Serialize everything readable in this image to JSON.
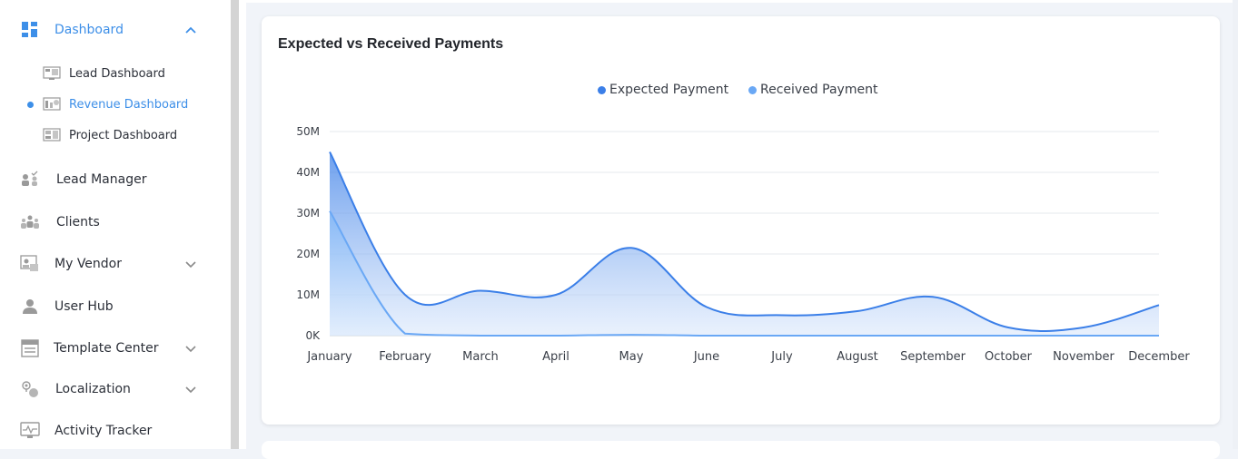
{
  "sidebar": {
    "items": [
      {
        "label": "Dashboard",
        "icon": "dashboard-icon",
        "active": true,
        "expanded": true
      },
      {
        "label": "Lead Manager",
        "icon": "lead-manager-icon"
      },
      {
        "label": "Clients",
        "icon": "clients-icon"
      },
      {
        "label": "My Vendor",
        "icon": "vendor-icon",
        "has_submenu": true
      },
      {
        "label": "User Hub",
        "icon": "user-icon"
      },
      {
        "label": "Template Center",
        "icon": "template-icon",
        "has_submenu": true
      },
      {
        "label": "Localization",
        "icon": "localization-icon",
        "has_submenu": true
      },
      {
        "label": "Activity Tracker",
        "icon": "activity-icon"
      }
    ],
    "subitems": [
      {
        "label": "Lead Dashboard",
        "icon": "lead-dashboard-icon"
      },
      {
        "label": "Revenue Dashboard",
        "icon": "revenue-dashboard-icon",
        "active": true
      },
      {
        "label": "Project Dashboard",
        "icon": "project-dashboard-icon"
      }
    ],
    "accent": "#3d8fe8"
  },
  "card": {
    "title": "Expected vs Received Payments"
  },
  "chart_data": {
    "type": "area",
    "categories": [
      "January",
      "February",
      "March",
      "April",
      "May",
      "June",
      "July",
      "August",
      "September",
      "October",
      "November",
      "December"
    ],
    "series": [
      {
        "name": "Expected Payment",
        "color": "#3b7fe8",
        "values": [
          45,
          10,
          11,
          10,
          21.5,
          7,
          5,
          6,
          9.5,
          2,
          2,
          7.5
        ]
      },
      {
        "name": "Received Payment",
        "color": "#6aa8f5",
        "values": [
          30.5,
          0.5,
          0,
          0,
          0.2,
          0,
          0,
          0,
          0,
          0,
          0,
          0
        ]
      }
    ],
    "y_ticks": [
      "0K",
      "10M",
      "20M",
      "30M",
      "40M",
      "50M"
    ],
    "ylim": [
      0,
      50
    ],
    "legend_position": "top-center",
    "grid": true
  }
}
